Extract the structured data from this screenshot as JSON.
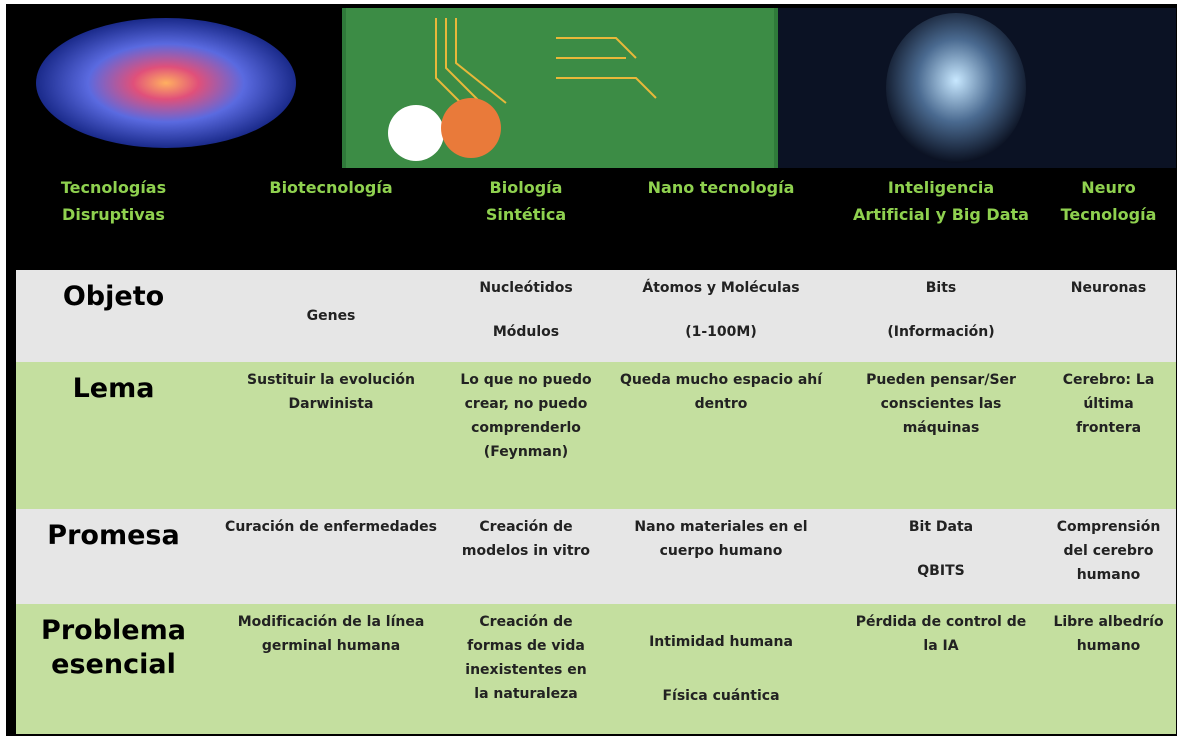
{
  "header": {
    "columns": [
      "Tecnologías Disruptivas",
      "Biotecnología",
      "Biología Sintética",
      "Nano tecnología",
      "Inteligencia Artificial y Big Data",
      "Neuro Tecnología"
    ]
  },
  "rows": [
    {
      "label": "Objeto",
      "cells": [
        [
          "Genes"
        ],
        [
          "Nucleótidos",
          "Módulos"
        ],
        [
          "Átomos y Moléculas",
          "(1-100M)"
        ],
        [
          "Bits",
          "(Información)"
        ],
        [
          "Neuronas"
        ]
      ]
    },
    {
      "label": "Lema",
      "cells": [
        [
          "Sustituir la evolución Darwinista"
        ],
        [
          "Lo que no puedo crear, no puedo comprenderlo (Feynman)"
        ],
        [
          "Queda mucho espacio ahí dentro"
        ],
        [
          "Pueden pensar/Ser conscientes las máquinas"
        ],
        [
          "Cerebro: La última frontera"
        ]
      ]
    },
    {
      "label": "Promesa",
      "cells": [
        [
          "Curación de enfermedades"
        ],
        [
          "Creación de modelos in vitro"
        ],
        [
          "Nano materiales en el cuerpo humano"
        ],
        [
          "Bit Data",
          "QBITS"
        ],
        [
          "Comprensión del cerebro humano"
        ]
      ]
    },
    {
      "label": "Problema esencial",
      "cells": [
        [
          "Modificación de la línea germinal humana"
        ],
        [
          "Creación de formas de vida inexistentes en la naturaleza"
        ],
        [
          "Intimidad humana",
          "Física cuántica"
        ],
        [
          "Pérdida de control de la IA"
        ],
        [
          "Libre albedrío humano"
        ]
      ]
    }
  ]
}
